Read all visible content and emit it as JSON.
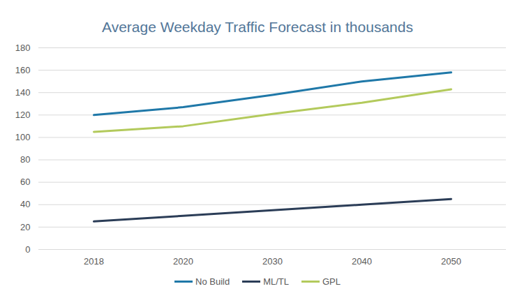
{
  "chart_data": {
    "type": "line",
    "title": "Average Weekday Traffic Forecast in thousands",
    "categories": [
      "2018",
      "2020",
      "2030",
      "2040",
      "2050"
    ],
    "series": [
      {
        "name": "No Build",
        "color": "#1f78a8",
        "values": [
          120,
          127,
          138,
          150,
          158
        ]
      },
      {
        "name": "ML/TL",
        "color": "#2b3d57",
        "values": [
          25,
          30,
          35,
          40,
          45
        ]
      },
      {
        "name": "GPL",
        "color": "#b3ca5c",
        "values": [
          105,
          110,
          121,
          131,
          143
        ]
      }
    ],
    "ylim": [
      0,
      180
    ],
    "yticks": [
      0,
      20,
      40,
      60,
      80,
      100,
      120,
      140,
      160,
      180
    ],
    "grid": true,
    "legend": "bottom"
  }
}
